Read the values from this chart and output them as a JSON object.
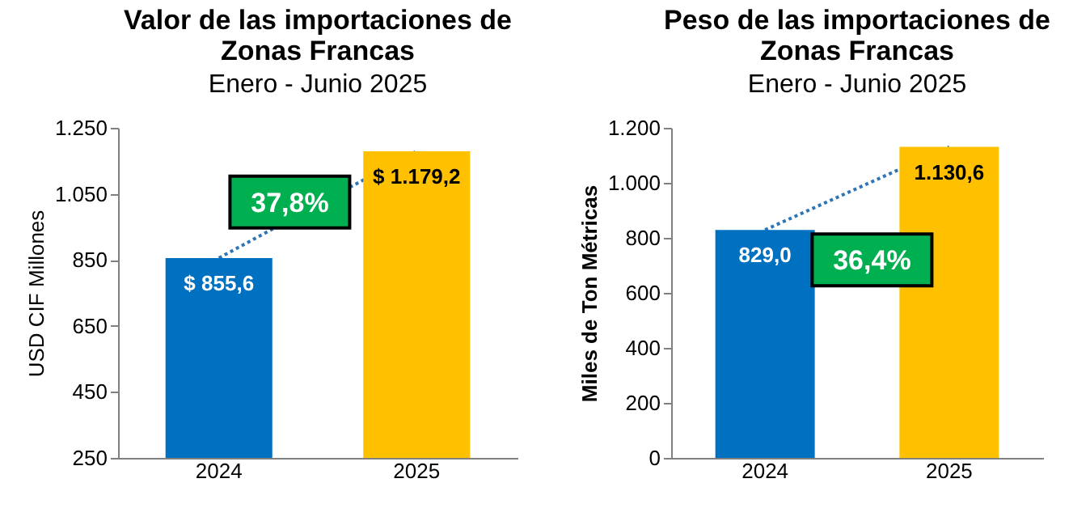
{
  "chart_data": [
    {
      "type": "bar",
      "title": "Valor de las importaciones de Zonas Francas",
      "subtitle": "Enero - Junio 2025",
      "ylabel": "USD CIF Millones",
      "categories": [
        "2024",
        "2025"
      ],
      "values": [
        855.6,
        1179.2
      ],
      "colors": [
        "#0070c0",
        "#ffc000"
      ],
      "value_labels": [
        "$ 855,6",
        "$ 1.179,2"
      ],
      "ylim": [
        250,
        1250
      ],
      "yticks": [
        250,
        450,
        650,
        850,
        {
          "value": 1050,
          "label": "1.050"
        },
        {
          "value": 1250,
          "label": "1.250"
        }
      ],
      "annotations": [
        "37,8%"
      ]
    },
    {
      "type": "bar",
      "title": "Peso de las importaciones de Zonas Francas",
      "subtitle": "Enero - Junio 2025",
      "ylabel": "Miles de Ton Métricas",
      "categories": [
        "2024",
        "2025"
      ],
      "values": [
        829.0,
        1130.6
      ],
      "colors": [
        "#0070c0",
        "#ffc000"
      ],
      "value_labels": [
        "829,0",
        "1.130,6"
      ],
      "ylim": [
        0,
        1200
      ],
      "yticks": [
        0,
        200,
        400,
        600,
        800,
        {
          "value": 1000,
          "label": "1.000"
        },
        {
          "value": 1200,
          "label": "1.200"
        }
      ],
      "annotations": [
        "36,4%"
      ]
    }
  ]
}
